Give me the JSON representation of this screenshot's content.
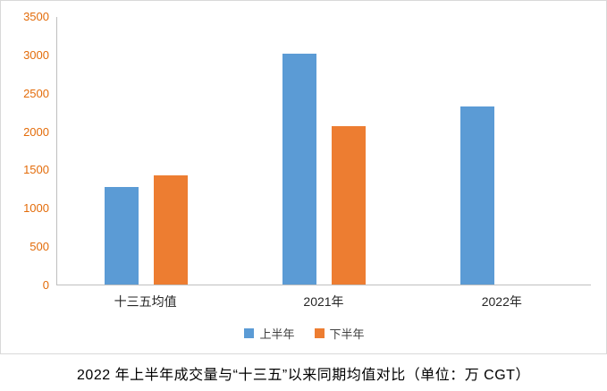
{
  "caption": "2022 年上半年成交量与“十三五”以来同期均值对比（单位：万 CGT）",
  "colors": {
    "series_first_half": "#5b9bd5",
    "series_second_half": "#ed7d31",
    "y_tick_label": "#e36c0a",
    "axis_line": "#bfbfbf",
    "chart_border": "#d9d9d9"
  },
  "chart_data": {
    "type": "bar",
    "title": "",
    "xlabel": "",
    "ylabel": "",
    "categories": [
      "十三五均值",
      "2021年",
      "2022年"
    ],
    "series": [
      {
        "name": "上半年",
        "color": "#5b9bd5",
        "values": [
          1270,
          3010,
          2320
        ]
      },
      {
        "name": "下半年",
        "color": "#ed7d31",
        "values": [
          1420,
          2070,
          null
        ]
      }
    ],
    "ylim": [
      0,
      3500
    ],
    "yticks": [
      0,
      500,
      1000,
      1500,
      2000,
      2500,
      3000,
      3500
    ],
    "grid": false,
    "legend_position": "bottom"
  }
}
